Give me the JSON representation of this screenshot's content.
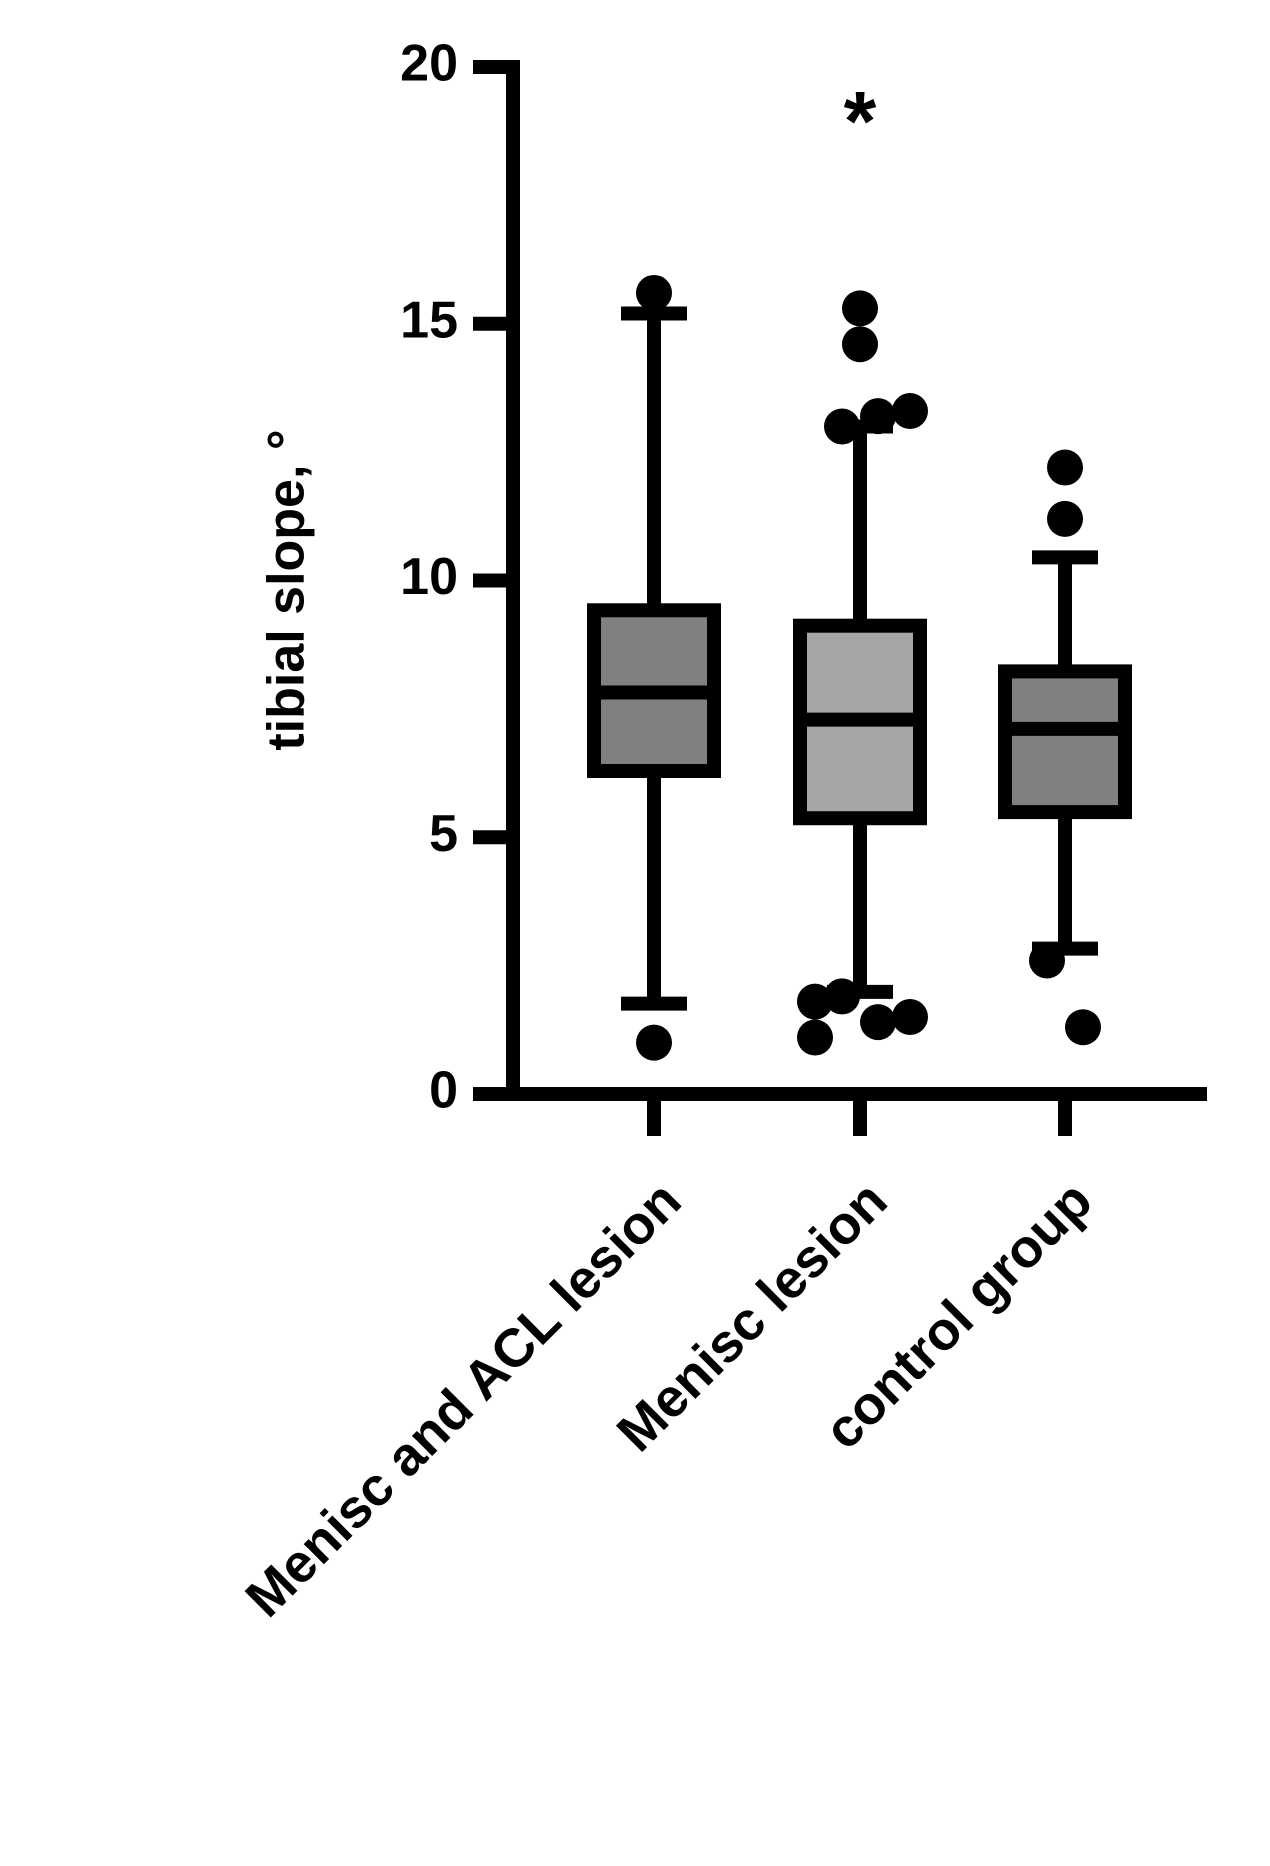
{
  "chart_data": {
    "type": "box",
    "y_label": "tibial slope, °",
    "annotation": "*",
    "categories": [
      "Menisc and ACL lesion",
      "Menisc lesion",
      "control group"
    ],
    "colors": [
      "#808080",
      "#a6a6a6",
      "#808080"
    ],
    "boxes": [
      {
        "whisker_low": 1.76,
        "q1": 6.29,
        "median": 7.82,
        "q3": 9.42,
        "whisker_high": 15.2,
        "outliers": [
          15.6,
          1.0
        ]
      },
      {
        "whisker_low": 1.99,
        "q1": 5.37,
        "median": 7.29,
        "q3": 9.12,
        "whisker_high": 13.0,
        "outliers": [
          15.3,
          14.6,
          13.0,
          13.2,
          13.3,
          1.8,
          1.1,
          1.9,
          1.4,
          1.5
        ]
      },
      {
        "whisker_low": 2.83,
        "q1": 5.49,
        "median": 7.11,
        "q3": 8.23,
        "whisker_high": 10.45,
        "outliers": [
          12.2,
          11.2,
          2.6,
          1.3
        ]
      }
    ],
    "ylim": [
      0,
      20
    ],
    "yticks": [
      0,
      5,
      10,
      15,
      20
    ]
  }
}
